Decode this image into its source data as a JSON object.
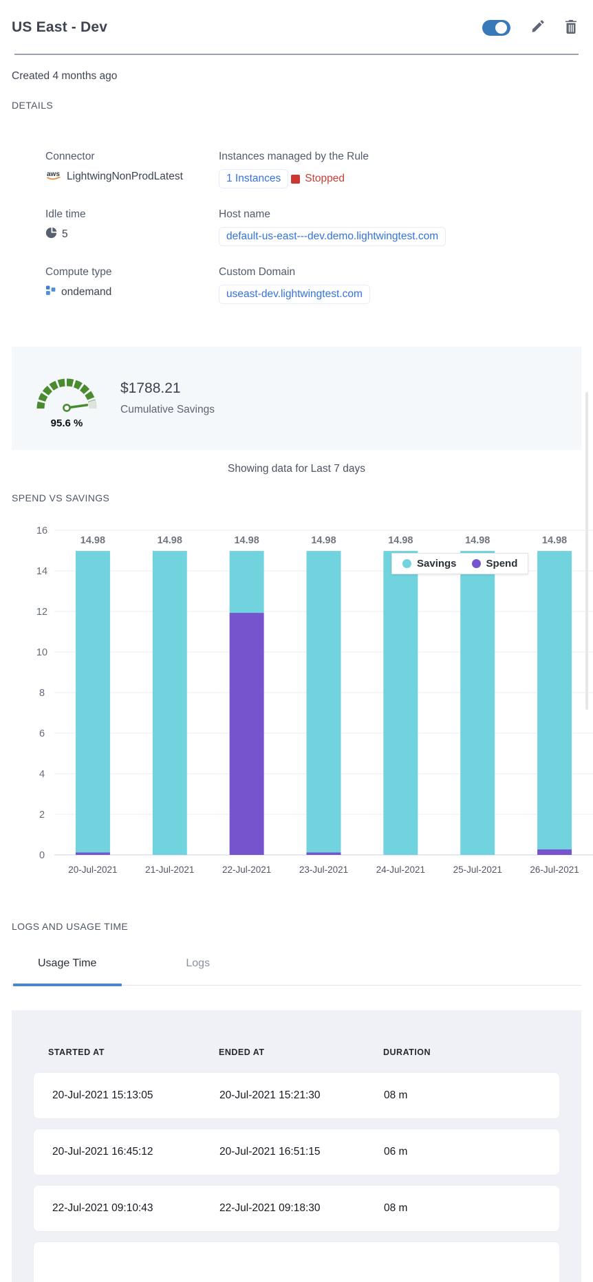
{
  "header": {
    "title": "US East - Dev",
    "toggle_state": "on"
  },
  "created": "Created 4 months ago",
  "sections": {
    "details": "DETAILS",
    "spend_vs_savings": "SPEND VS SAVINGS",
    "logs": "LOGS AND USAGE TIME"
  },
  "details": {
    "connector_label": "Connector",
    "connector_value": "LightwingNonProdLatest",
    "instances_label": "Instances managed by the Rule",
    "instances_link": "1 Instances",
    "instances_status": "Stopped",
    "idle_label": "Idle time",
    "idle_value": "5",
    "host_label": "Host name",
    "host_value": "default-us-east---dev.demo.lightwingtest.com",
    "compute_label": "Compute type",
    "compute_value": "ondemand",
    "domain_label": "Custom Domain",
    "domain_value": "useast-dev.lightwingtest.com"
  },
  "savings": {
    "percent": "95.6 %",
    "amount": "$1788.21",
    "caption": "Cumulative Savings"
  },
  "showing": "Showing data for Last 7 days",
  "chart_data": {
    "type": "bar",
    "stacked": true,
    "title": "SPEND VS SAVINGS",
    "categories": [
      "20-Jul-2021",
      "21-Jul-2021",
      "22-Jul-2021",
      "23-Jul-2021",
      "24-Jul-2021",
      "25-Jul-2021",
      "26-Jul-2021"
    ],
    "series": [
      {
        "name": "Savings",
        "color": "#70d3de",
        "values": [
          14.86,
          14.98,
          3.05,
          14.86,
          14.98,
          14.98,
          14.71
        ]
      },
      {
        "name": "Spend",
        "color": "#7554cd",
        "values": [
          0.12,
          0,
          11.93,
          0.12,
          0,
          0,
          0.27
        ]
      }
    ],
    "bar_total_labels": [
      "14.98",
      "14.98",
      "14.98",
      "14.98",
      "14.98",
      "14.98",
      "14.98"
    ],
    "ylim": [
      0,
      16
    ],
    "yticks": [
      0,
      2,
      4,
      6,
      8,
      10,
      12,
      14,
      16
    ],
    "grid": true,
    "legend_position": "top-right"
  },
  "tabs": {
    "usage": "Usage Time",
    "logs": "Logs",
    "active": "Usage Time"
  },
  "table": {
    "columns": [
      "STARTED AT",
      "ENDED AT",
      "DURATION"
    ],
    "rows": [
      [
        "20-Jul-2021 15:13:05",
        "20-Jul-2021 15:21:30",
        "08 m"
      ],
      [
        "20-Jul-2021 16:45:12",
        "20-Jul-2021 16:51:15",
        "06 m"
      ],
      [
        "22-Jul-2021 09:10:43",
        "22-Jul-2021 09:18:30",
        "08 m"
      ],
      [
        "",
        "",
        ""
      ]
    ]
  },
  "colors": {
    "accent_blue": "#3473dc",
    "toggle_blue": "#3879ba",
    "status_red": "#cb3e33",
    "savings_teal": "#70d3de",
    "spend_purple": "#7554cd",
    "gauge_green": "#4b8b2f",
    "panel_blue": "#f4f8fb",
    "panel_gray": "#f0f1f7"
  }
}
